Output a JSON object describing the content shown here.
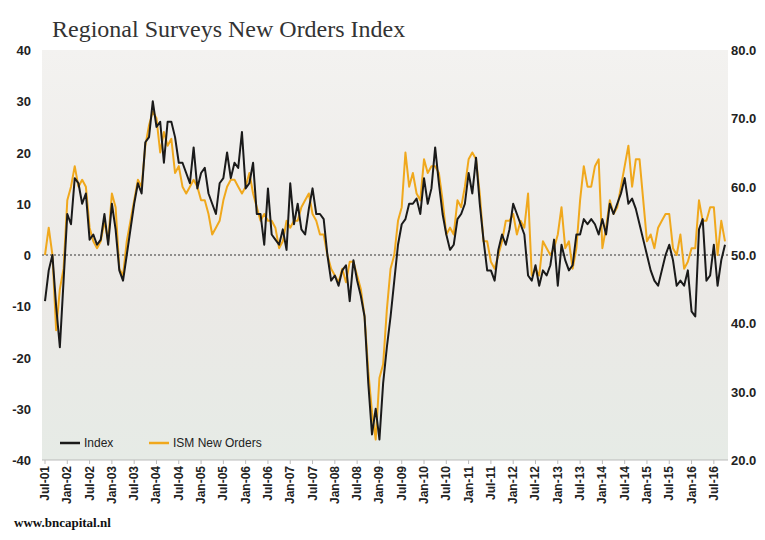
{
  "chart_data": {
    "type": "line",
    "title": "Regional Surveys New Orders Index",
    "source": "www.bncapital.nl",
    "categories": [
      "Jul-01",
      null,
      null,
      null,
      null,
      null,
      "Jan-02",
      null,
      null,
      null,
      null,
      null,
      "Jul-02",
      null,
      null,
      null,
      null,
      null,
      "Jan-03",
      null,
      null,
      null,
      null,
      null,
      "Jul-03",
      null,
      null,
      null,
      null,
      null,
      "Jan-04",
      null,
      null,
      null,
      null,
      null,
      "Jul-04",
      null,
      null,
      null,
      null,
      null,
      "Jan-05",
      null,
      null,
      null,
      null,
      null,
      "Jul-05",
      null,
      null,
      null,
      null,
      null,
      "Jan-06",
      null,
      null,
      null,
      null,
      null,
      "Jul-06",
      null,
      null,
      null,
      null,
      null,
      "Jan-07",
      null,
      null,
      null,
      null,
      null,
      "Jul-07",
      null,
      null,
      null,
      null,
      null,
      "Jan-08",
      null,
      null,
      null,
      null,
      null,
      "Jul-08",
      null,
      null,
      null,
      null,
      null,
      "Jan-09",
      null,
      null,
      null,
      null,
      null,
      "Jul-09",
      null,
      null,
      null,
      null,
      null,
      "Jan-10",
      null,
      null,
      null,
      null,
      null,
      "Jul-10",
      null,
      null,
      null,
      null,
      null,
      "Jan-11",
      null,
      null,
      null,
      null,
      null,
      "Jul-11",
      null,
      null,
      null,
      null,
      null,
      "Jan-12",
      null,
      null,
      null,
      null,
      null,
      "Jul-12",
      null,
      null,
      null,
      null,
      null,
      "Jan-13",
      null,
      null,
      null,
      null,
      null,
      "Jul-13",
      null,
      null,
      null,
      null,
      null,
      "Jan-14",
      null,
      null,
      null,
      null,
      null,
      "Jul-14",
      null,
      null,
      null,
      null,
      null,
      "Jan-15",
      null,
      null,
      null,
      null,
      null,
      "Jul-15",
      null,
      null,
      null,
      null,
      null,
      "Jan-16",
      null,
      null,
      null,
      null,
      null,
      "Jul-16",
      null,
      null,
      null
    ],
    "series": [
      {
        "name": "Index",
        "color": "#1a1a1a",
        "axis": "y",
        "values": [
          -9,
          -3,
          0,
          -10,
          -18,
          -5,
          8,
          6,
          15,
          14,
          10,
          12,
          3,
          4,
          2,
          3,
          8,
          2,
          10,
          5,
          -3,
          -5,
          0,
          5,
          10,
          14,
          12,
          22,
          23,
          30,
          25,
          26,
          18,
          26,
          26,
          23,
          18,
          18,
          16,
          14,
          21,
          13,
          16,
          17,
          12,
          10,
          8,
          14,
          15,
          20,
          15,
          18,
          17,
          24,
          13,
          14,
          18,
          8,
          8,
          2,
          13,
          4,
          3,
          2,
          5,
          1,
          14,
          6,
          10,
          5,
          4,
          9,
          13,
          8,
          8,
          7,
          0,
          -5,
          -4,
          -6,
          -3,
          -2,
          -9,
          -1,
          -5,
          -8,
          -12,
          -25,
          -35,
          -30,
          -36,
          -25,
          -18,
          -12,
          -5,
          2,
          6,
          7,
          10,
          10,
          11,
          8,
          15,
          10,
          13,
          21,
          14,
          8,
          4,
          1,
          2,
          7,
          8,
          10,
          16,
          12,
          19,
          10,
          3,
          -3,
          -3,
          -5,
          1,
          4,
          2,
          5,
          10,
          8,
          6,
          4,
          -4,
          -5,
          -2,
          -6,
          -3,
          -4,
          -2,
          3,
          -6,
          2,
          -1,
          -3,
          -2,
          4,
          4,
          7,
          6,
          7,
          6,
          4,
          7,
          4,
          10,
          8,
          10,
          12,
          15,
          10,
          11,
          9,
          6,
          3,
          0,
          -3,
          -5,
          -6,
          -3,
          0,
          2,
          -1,
          -6,
          -5,
          -6,
          -3,
          -11,
          -12,
          5,
          7,
          -5,
          -4,
          2,
          -6,
          -1,
          2
        ]
      },
      {
        "name": "ISM New Orders",
        "color": "#f0a81c",
        "axis": "y2",
        "values": [
          50,
          54,
          50,
          39,
          45,
          48,
          58,
          60,
          63,
          60,
          61,
          60,
          54,
          52,
          51,
          52,
          55,
          52,
          59,
          57,
          48,
          47,
          52,
          55,
          58,
          61,
          60,
          66,
          69,
          71,
          70,
          65,
          68,
          66,
          67,
          62,
          63,
          60,
          59,
          60,
          61,
          60,
          58,
          58,
          56,
          53,
          54,
          55,
          58,
          60,
          61,
          61,
          60,
          59,
          60,
          62,
          59,
          57,
          55,
          56,
          55,
          55,
          54,
          51,
          52,
          55,
          54,
          55,
          55,
          57,
          58,
          59,
          56,
          55,
          53,
          53,
          50,
          48,
          47,
          46,
          48,
          46,
          49,
          49,
          47,
          45,
          41,
          33,
          27,
          23,
          32,
          34,
          42,
          48,
          50,
          55,
          57,
          65,
          60,
          62,
          59,
          58,
          64,
          62,
          63,
          63,
          62,
          58,
          53,
          54,
          53,
          58,
          57,
          60,
          64,
          65,
          64,
          59,
          52,
          52,
          49,
          48,
          50,
          52,
          55,
          55,
          56,
          53,
          55,
          54,
          59,
          47,
          48,
          47,
          52,
          51,
          50,
          51,
          53,
          57,
          51,
          52,
          48,
          51,
          58,
          63,
          60,
          60,
          63,
          64,
          51,
          54,
          58,
          56,
          57,
          60,
          63,
          66,
          60,
          64,
          64,
          58,
          52,
          53,
          51,
          54,
          55,
          56,
          56,
          51,
          50,
          53,
          48,
          49,
          51,
          51,
          58,
          55,
          55,
          57,
          57,
          50,
          55,
          52
        ]
      }
    ],
    "ylim": [
      -40,
      40
    ],
    "yticks": [
      -40,
      -30,
      -20,
      -10,
      0,
      10,
      20,
      30,
      40
    ],
    "y2lim": [
      20,
      80
    ],
    "y2ticks": [
      {
        "value": 20,
        "label": "20.0"
      },
      {
        "value": 30,
        "label": "30.0"
      },
      {
        "value": 40,
        "label": "40.0"
      },
      {
        "value": 50,
        "label": "50.0"
      },
      {
        "value": 60,
        "label": "60.0"
      },
      {
        "value": 70,
        "label": "70.0"
      },
      {
        "value": 80,
        "label": "80.0"
      }
    ],
    "grid": false,
    "legend": "bottom-left"
  }
}
